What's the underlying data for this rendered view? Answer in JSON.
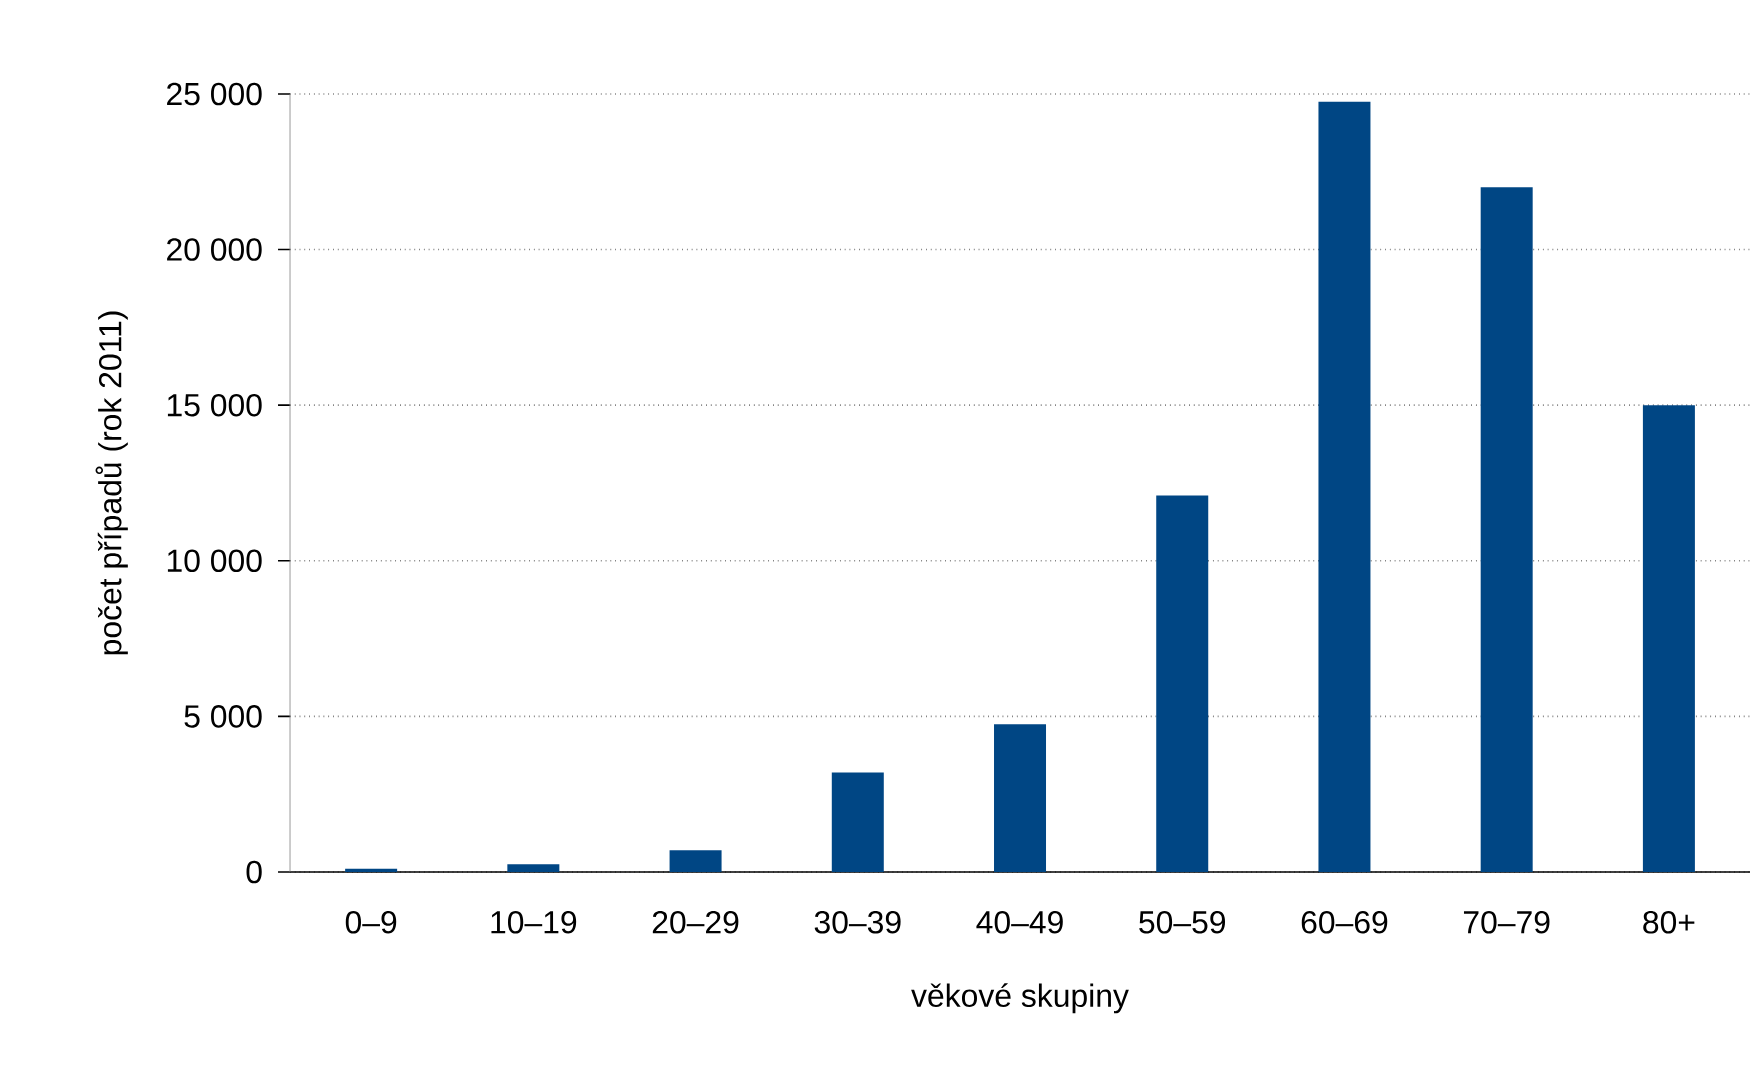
{
  "chart_data": {
    "type": "bar",
    "xlabel": "věkové skupiny",
    "ylabel": "počet případů (rok 2011)",
    "categories": [
      "0–9",
      "10–19",
      "20–29",
      "30–39",
      "40–49",
      "50–59",
      "60–69",
      "70–79",
      "80+"
    ],
    "values": [
      100,
      250,
      700,
      3200,
      4750,
      12100,
      24750,
      22000,
      15000
    ],
    "color": "#004684",
    "ylim": [
      0,
      25000
    ],
    "yticks": [
      0,
      {
        "value": 5000,
        "label": "5 000"
      },
      {
        "value": 10000,
        "label": "10 000"
      },
      {
        "value": 15000,
        "label": "15 000"
      },
      {
        "value": 20000,
        "label": "20 000"
      },
      {
        "value": 25000,
        "label": "25 000"
      }
    ],
    "grid": "y"
  }
}
